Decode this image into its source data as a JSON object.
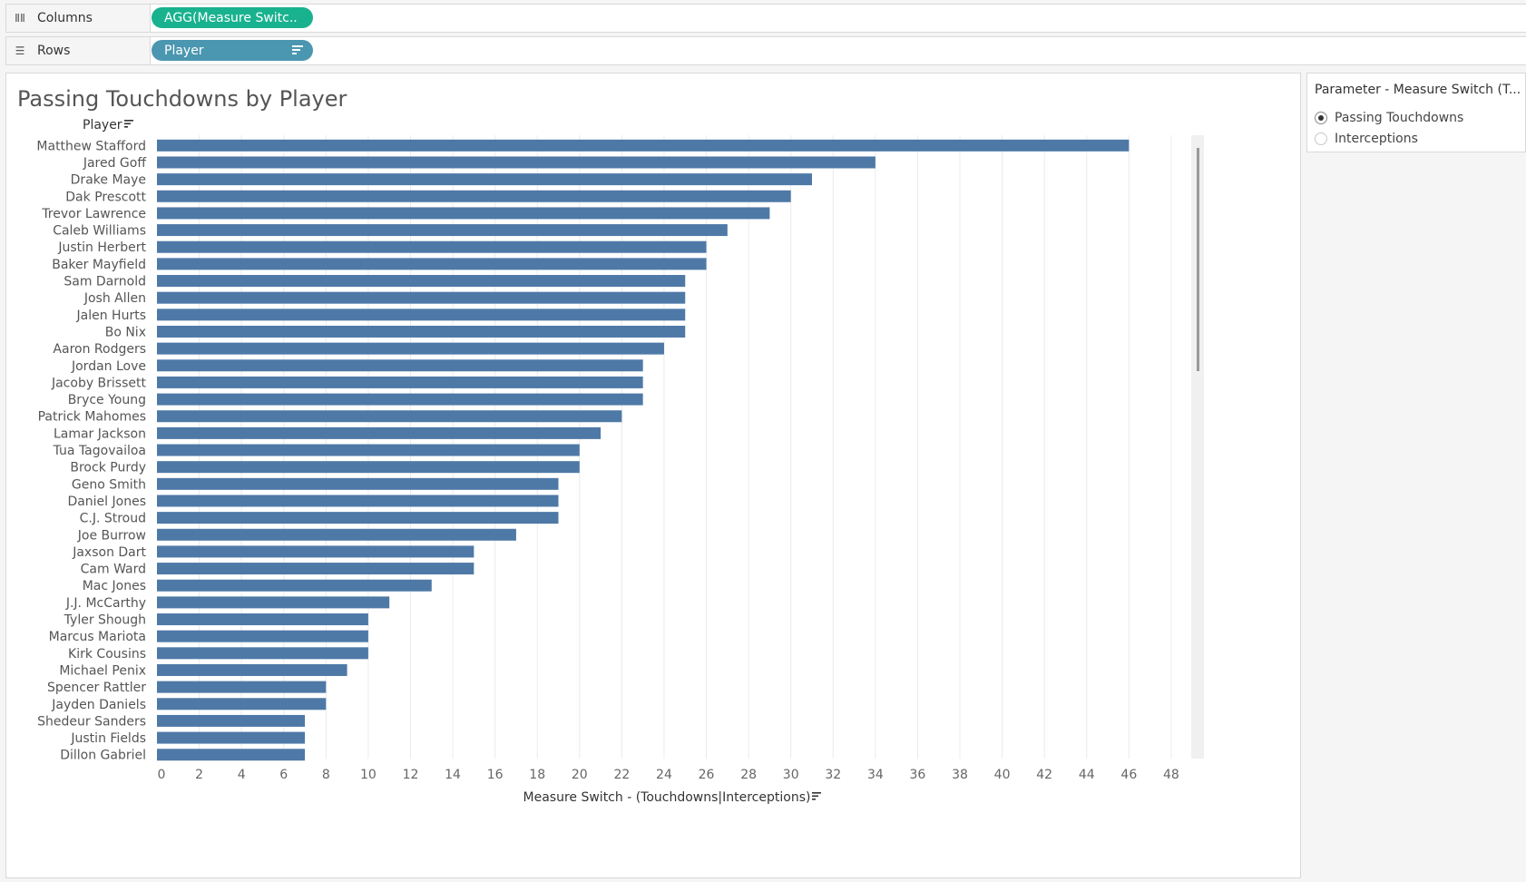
{
  "shelves": {
    "columns": {
      "label": "Columns",
      "pill": "AGG(Measure Switc.."
    },
    "rows": {
      "label": "Rows",
      "pill": "Player"
    }
  },
  "sheet": {
    "title": "Passing Touchdowns by Player"
  },
  "parameter": {
    "title": "Parameter - Measure Switch (T...",
    "options": [
      {
        "label": "Passing Touchdowns",
        "selected": true
      },
      {
        "label": "Interceptions",
        "selected": false
      }
    ]
  },
  "colors": {
    "bar": "#4e79a7",
    "gridline": "#ebebeb",
    "columns_pill": "#19b28f",
    "rows_pill": "#4b96b0"
  },
  "chart_data": {
    "type": "bar",
    "orientation": "horizontal",
    "ylabel": "Player",
    "xlabel": "Measure Switch - (Touchdowns|Interceptions)",
    "xlim": [
      0,
      48
    ],
    "xticks": [
      0,
      2,
      4,
      6,
      8,
      10,
      12,
      14,
      16,
      18,
      20,
      22,
      24,
      26,
      28,
      30,
      32,
      34,
      36,
      38,
      40,
      42,
      44,
      46,
      48
    ],
    "grid": true,
    "categories": [
      "Matthew Stafford",
      "Jared Goff",
      "Drake Maye",
      "Dak Prescott",
      "Trevor Lawrence",
      "Caleb Williams",
      "Justin Herbert",
      "Baker Mayfield",
      "Sam Darnold",
      "Josh Allen",
      "Jalen Hurts",
      "Bo Nix",
      "Aaron Rodgers",
      "Jordan Love",
      "Jacoby Brissett",
      "Bryce Young",
      "Patrick Mahomes",
      "Lamar Jackson",
      "Tua Tagovailoa",
      "Brock Purdy",
      "Geno Smith",
      "Daniel Jones",
      "C.J. Stroud",
      "Joe Burrow",
      "Jaxson Dart",
      "Cam Ward",
      "Mac Jones",
      "J.J. McCarthy",
      "Tyler Shough",
      "Marcus Mariota",
      "Kirk Cousins",
      "Michael Penix",
      "Spencer Rattler",
      "Jayden Daniels",
      "Shedeur Sanders",
      "Justin Fields",
      "Dillon Gabriel"
    ],
    "values": [
      46,
      34,
      31,
      30,
      29,
      27,
      26,
      26,
      25,
      25,
      25,
      25,
      24,
      23,
      23,
      23,
      22,
      21,
      20,
      20,
      19,
      19,
      19,
      17,
      15,
      15,
      13,
      11,
      10,
      10,
      10,
      9,
      8,
      8,
      7,
      7,
      7
    ]
  }
}
